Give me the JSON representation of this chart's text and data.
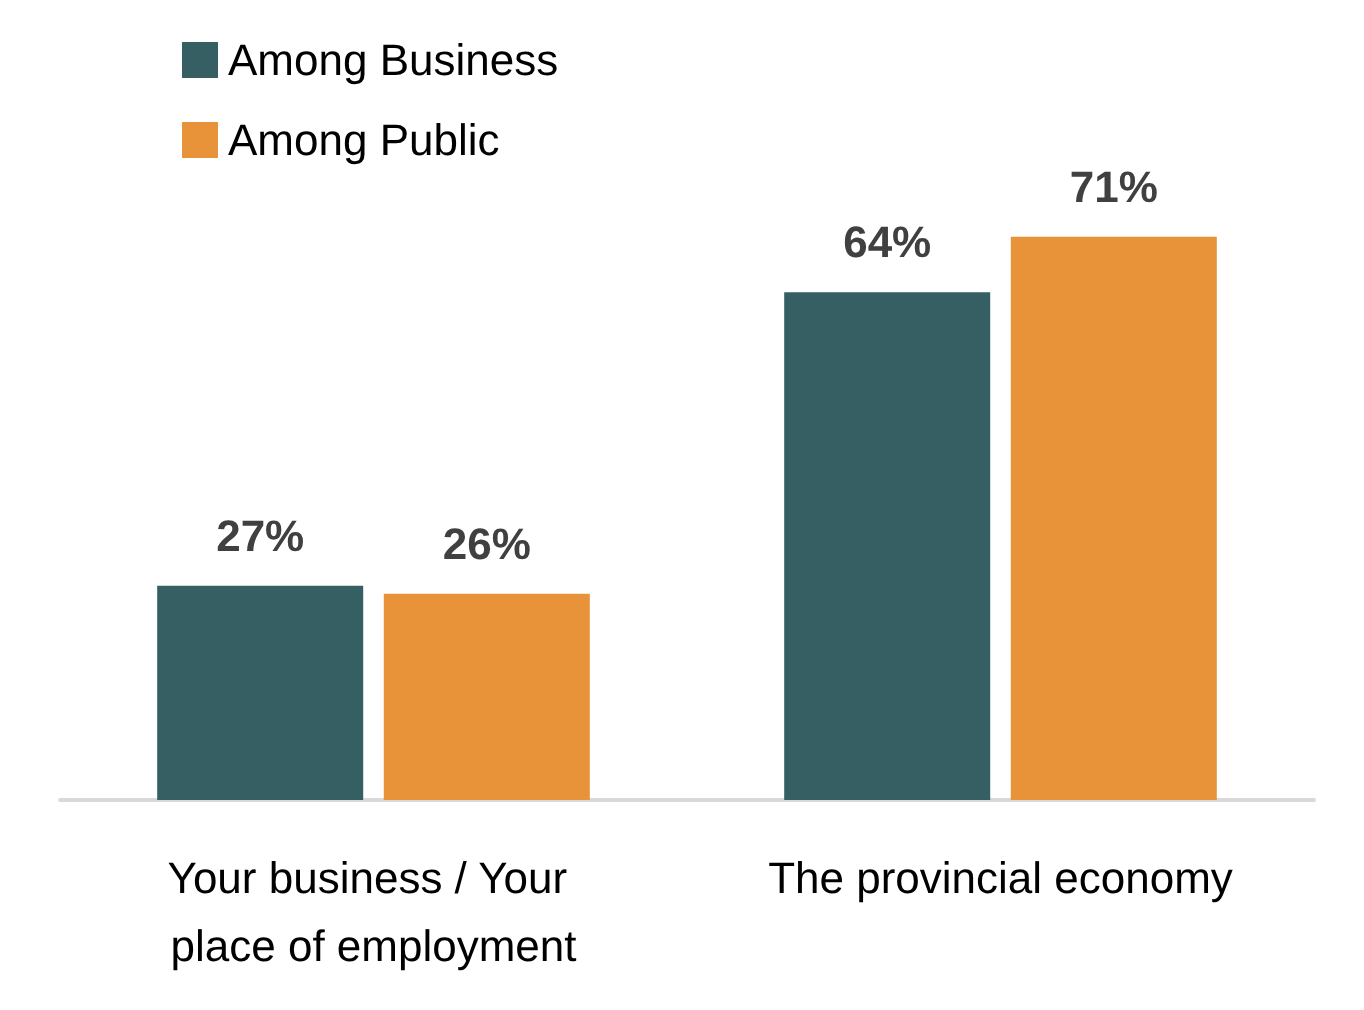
{
  "chart_data": {
    "type": "bar",
    "categories": [
      "Your business / Your place of employment",
      "The provincial economy"
    ],
    "series": [
      {
        "name": "Among Business",
        "color": "#365f63",
        "values": [
          27,
          64
        ],
        "value_labels": [
          "27%",
          "64%"
        ]
      },
      {
        "name": "Among Public",
        "color": "#e8923a",
        "values": [
          26,
          71
        ],
        "value_labels": [
          "26%",
          "71%"
        ]
      }
    ],
    "legend": "top left"
  }
}
